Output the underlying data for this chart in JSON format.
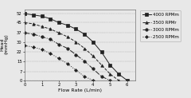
{
  "title": "",
  "xlabel": "Flow Rate (L/min)",
  "ylabel": "Pressure Head (mmHg)",
  "xlim": [
    0,
    6.5
  ],
  "ylim": [
    0,
    55
  ],
  "yticks": [
    0,
    7,
    15,
    22,
    30,
    37,
    45,
    52
  ],
  "xtick_labels": [
    "0",
    "1",
    "2",
    "3",
    "4",
    "5",
    "6"
  ],
  "xticks": [
    0,
    1,
    2,
    3,
    4,
    5,
    6
  ],
  "series": [
    {
      "label": "4000 RPMm",
      "x": [
        0.0,
        0.5,
        1.0,
        1.5,
        2.0,
        2.5,
        3.0,
        3.5,
        4.0,
        4.5,
        5.0,
        5.5,
        6.0
      ],
      "y": [
        52,
        51,
        50,
        48,
        45,
        43,
        40,
        36,
        30,
        22,
        12,
        5,
        0
      ],
      "color": "#222222",
      "linestyle": "-",
      "marker": "s",
      "markersize": 2.5,
      "linewidth": 0.7
    },
    {
      "label": "3500 RPMr",
      "x": [
        0.0,
        0.5,
        1.0,
        1.5,
        2.0,
        2.5,
        3.0,
        3.5,
        4.0,
        4.5,
        5.0,
        5.5
      ],
      "y": [
        45,
        44,
        42,
        40,
        37,
        34,
        30,
        25,
        19,
        12,
        5,
        0
      ],
      "color": "#222222",
      "linestyle": "--",
      "marker": "^",
      "markersize": 2.5,
      "linewidth": 0.7
    },
    {
      "label": "3000 RPMm",
      "x": [
        0.0,
        0.5,
        1.0,
        1.5,
        2.0,
        2.5,
        3.0,
        3.5,
        4.0,
        4.5,
        5.0
      ],
      "y": [
        37,
        36,
        34,
        32,
        28,
        25,
        20,
        15,
        9,
        3,
        0
      ],
      "color": "#222222",
      "linestyle": "-.",
      "marker": "o",
      "markersize": 2.5,
      "linewidth": 0.7
    },
    {
      "label": "2500 RPMm",
      "x": [
        0.0,
        0.5,
        1.0,
        1.5,
        2.0,
        2.5,
        3.0,
        3.5,
        4.0
      ],
      "y": [
        27,
        26,
        24,
        21,
        17,
        13,
        8,
        3,
        0
      ],
      "color": "#222222",
      "linestyle": ":",
      "marker": "D",
      "markersize": 2.0,
      "linewidth": 0.7
    }
  ],
  "legend_labels": [
    "-■-4000 RPMm",
    "-▲-3500 RPMr",
    "-●-3000 RPMm",
    "-◆-2500 RPMm"
  ],
  "bg_color": "#e8e8e8",
  "plot_bg_color": "#e8e8e8",
  "legend_fontsize": 4.0,
  "axis_fontsize": 4.5,
  "tick_fontsize": 3.8
}
